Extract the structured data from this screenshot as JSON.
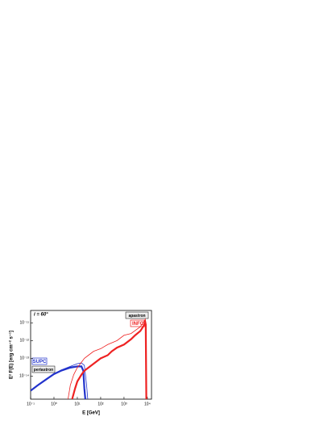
{
  "chart_data": {
    "type": "line",
    "x_label": "E [GeV]",
    "y_label": "E² F(E) [erg cm⁻² s⁻¹]",
    "log_x": true,
    "log_y": true,
    "xlim": [
      0.1,
      15000
    ],
    "xticks": [
      {
        "value": 0.1,
        "label": "10⁻¹"
      },
      {
        "value": 1,
        "label": "10⁰"
      },
      {
        "value": 10,
        "label": "10¹"
      },
      {
        "value": 100,
        "label": "10²"
      },
      {
        "value": 1000,
        "label": "10³"
      },
      {
        "value": 10000,
        "label": "10⁴"
      }
    ],
    "ylim": [
      5e-16,
      5e-11
    ],
    "yticks": [
      {
        "value": 1e-14,
        "label": "10⁻¹⁴"
      },
      {
        "value": 1e-13,
        "label": "10⁻¹³"
      },
      {
        "value": 1e-12,
        "label": "10⁻¹²"
      },
      {
        "value": 1e-11,
        "label": "10⁻¹¹"
      }
    ],
    "annotations": [
      "i = 60°",
      "apastron",
      "INFC",
      "SUPC",
      "periastron"
    ],
    "series": [
      {
        "color": "#2233cc",
        "width": 2.2,
        "x": [
          0.1,
          0.2,
          0.5,
          1,
          2,
          5,
          10,
          15,
          18,
          20,
          22
        ],
        "values": [
          1.5e-15,
          3e-15,
          7e-15,
          1.3e-14,
          2e-14,
          3e-14,
          3.5e-14,
          3.5e-14,
          2e-14,
          2e-15,
          5e-16
        ]
      },
      {
        "color": "#2233cc",
        "width": 0.8,
        "x": [
          0.1,
          0.2,
          0.5,
          1,
          2,
          5,
          10,
          15,
          20,
          25,
          28
        ],
        "values": [
          1.5e-15,
          3e-15,
          7e-15,
          1.3e-14,
          2.2e-14,
          3.5e-14,
          5e-14,
          5.5e-14,
          4e-14,
          3e-15,
          5e-16
        ]
      },
      {
        "color": "#ee2222",
        "width": 2.2,
        "x": [
          6,
          8,
          10,
          15,
          20,
          30,
          50,
          100,
          200,
          300,
          500,
          1000,
          2000,
          3000,
          5000,
          7000,
          8000,
          8500,
          9000
        ],
        "values": [
          5e-16,
          2e-15,
          5e-15,
          1.2e-14,
          2e-14,
          3e-14,
          5e-14,
          1e-13,
          1.5e-13,
          2.5e-13,
          4e-13,
          6e-13,
          1.2e-12,
          2e-12,
          3.5e-12,
          7e-12,
          1.2e-11,
          8e-12,
          5e-16
        ]
      },
      {
        "color": "#ee2222",
        "width": 0.8,
        "x": [
          4,
          5,
          7,
          10,
          15,
          20,
          30,
          50,
          100,
          200,
          500,
          1000,
          2000,
          5000,
          7000,
          8000,
          8500,
          9000
        ],
        "values": [
          5e-16,
          3e-15,
          1.2e-14,
          3e-14,
          6e-14,
          1e-13,
          1.5e-13,
          2.5e-13,
          3.5e-13,
          6e-13,
          1e-12,
          2e-12,
          2.5e-12,
          6e-12,
          1.2e-11,
          1.5e-11,
          1e-11,
          5e-16
        ]
      }
    ]
  }
}
